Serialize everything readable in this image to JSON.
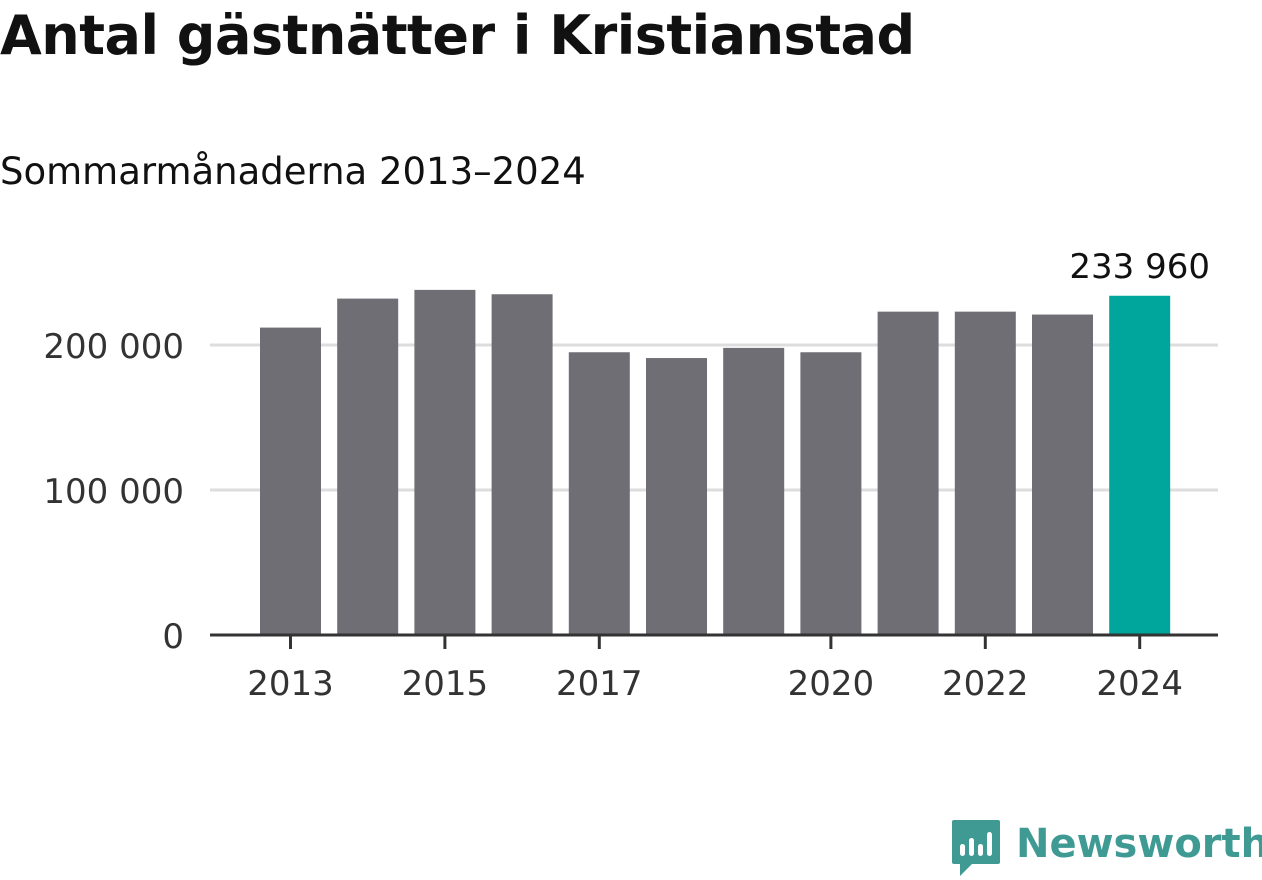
{
  "title": "Antal gästnätter i Kristianstad",
  "subtitle": "Sommarmånaderna 2013–2024",
  "brand": {
    "name": "Newsworthy",
    "color": "#3f9a94",
    "icon": "newsworthy-logo-icon"
  },
  "colors": {
    "bar": "#6f6e75",
    "highlight": "#00a59b",
    "grid": "#dddddd",
    "axis": "#333333"
  },
  "chart_data": {
    "type": "bar",
    "categories": [
      "2013",
      "2014",
      "2015",
      "2016",
      "2017",
      "2018",
      "2019",
      "2020",
      "2021",
      "2022",
      "2023",
      "2024"
    ],
    "values": [
      212000,
      232000,
      238000,
      235000,
      195000,
      191000,
      198000,
      195000,
      223000,
      223000,
      221000,
      233960
    ],
    "highlight_index": 11,
    "data_labels": [
      {
        "index": 11,
        "text": "233 960"
      }
    ],
    "x_tick_labels": [
      "2013",
      "2015",
      "2017",
      "2020",
      "2022",
      "2024"
    ],
    "y_ticks": [
      0,
      100000,
      200000
    ],
    "y_tick_labels": [
      "0",
      "100 000",
      "200 000"
    ],
    "ylim": [
      0,
      250000
    ],
    "grid": true,
    "legend": false
  }
}
